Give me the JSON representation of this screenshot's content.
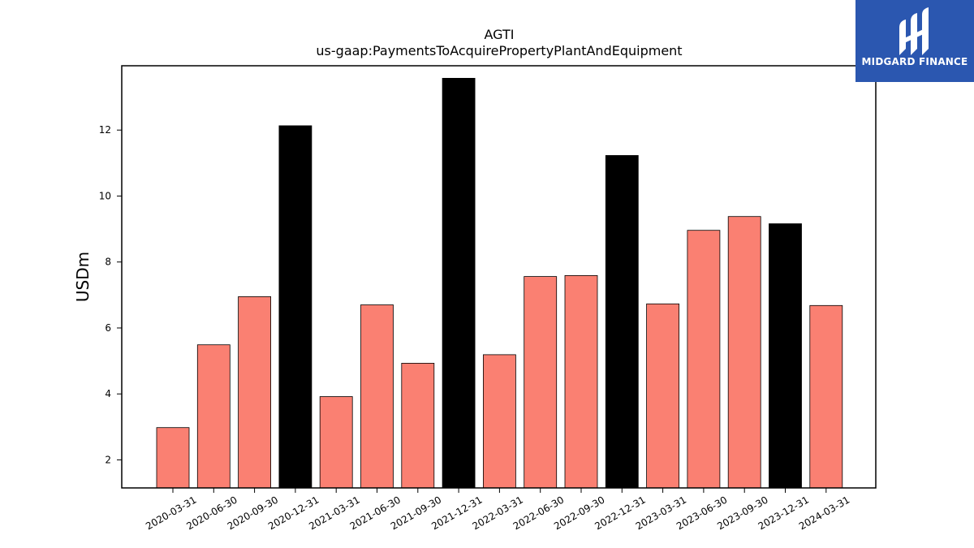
{
  "chart_data": {
    "type": "bar",
    "title": "AGTI",
    "subtitle": "us-gaap:PaymentsToAcquirePropertyPlantAndEquipment",
    "xlabel": "",
    "ylabel": "USDm",
    "ylim": [
      1.15,
      13.95
    ],
    "yticks": [
      2,
      4,
      6,
      8,
      10,
      12
    ],
    "grid": false,
    "categories": [
      "2020-03-31",
      "2020-06-30",
      "2020-09-30",
      "2020-12-31",
      "2021-03-31",
      "2021-06-30",
      "2021-09-30",
      "2021-12-31",
      "2022-03-31",
      "2022-06-30",
      "2022-09-30",
      "2022-12-31",
      "2023-03-31",
      "2023-06-30",
      "2023-09-30",
      "2023-12-31",
      "2024-03-31"
    ],
    "values": [
      2.98,
      5.49,
      6.95,
      12.13,
      3.92,
      6.7,
      4.93,
      13.57,
      5.19,
      7.56,
      7.59,
      11.23,
      6.73,
      8.96,
      9.38,
      9.16,
      6.68
    ],
    "colors": {
      "quarter": "#fa8072",
      "year_end": "#000000",
      "edge": "#000000"
    },
    "bar_kinds": [
      "quarter",
      "quarter",
      "quarter",
      "year_end",
      "quarter",
      "quarter",
      "quarter",
      "year_end",
      "quarter",
      "quarter",
      "quarter",
      "year_end",
      "quarter",
      "quarter",
      "quarter",
      "year_end",
      "quarter"
    ]
  },
  "logo": {
    "text": "MIDGARD FINANCE",
    "background": "#2b57b0"
  }
}
